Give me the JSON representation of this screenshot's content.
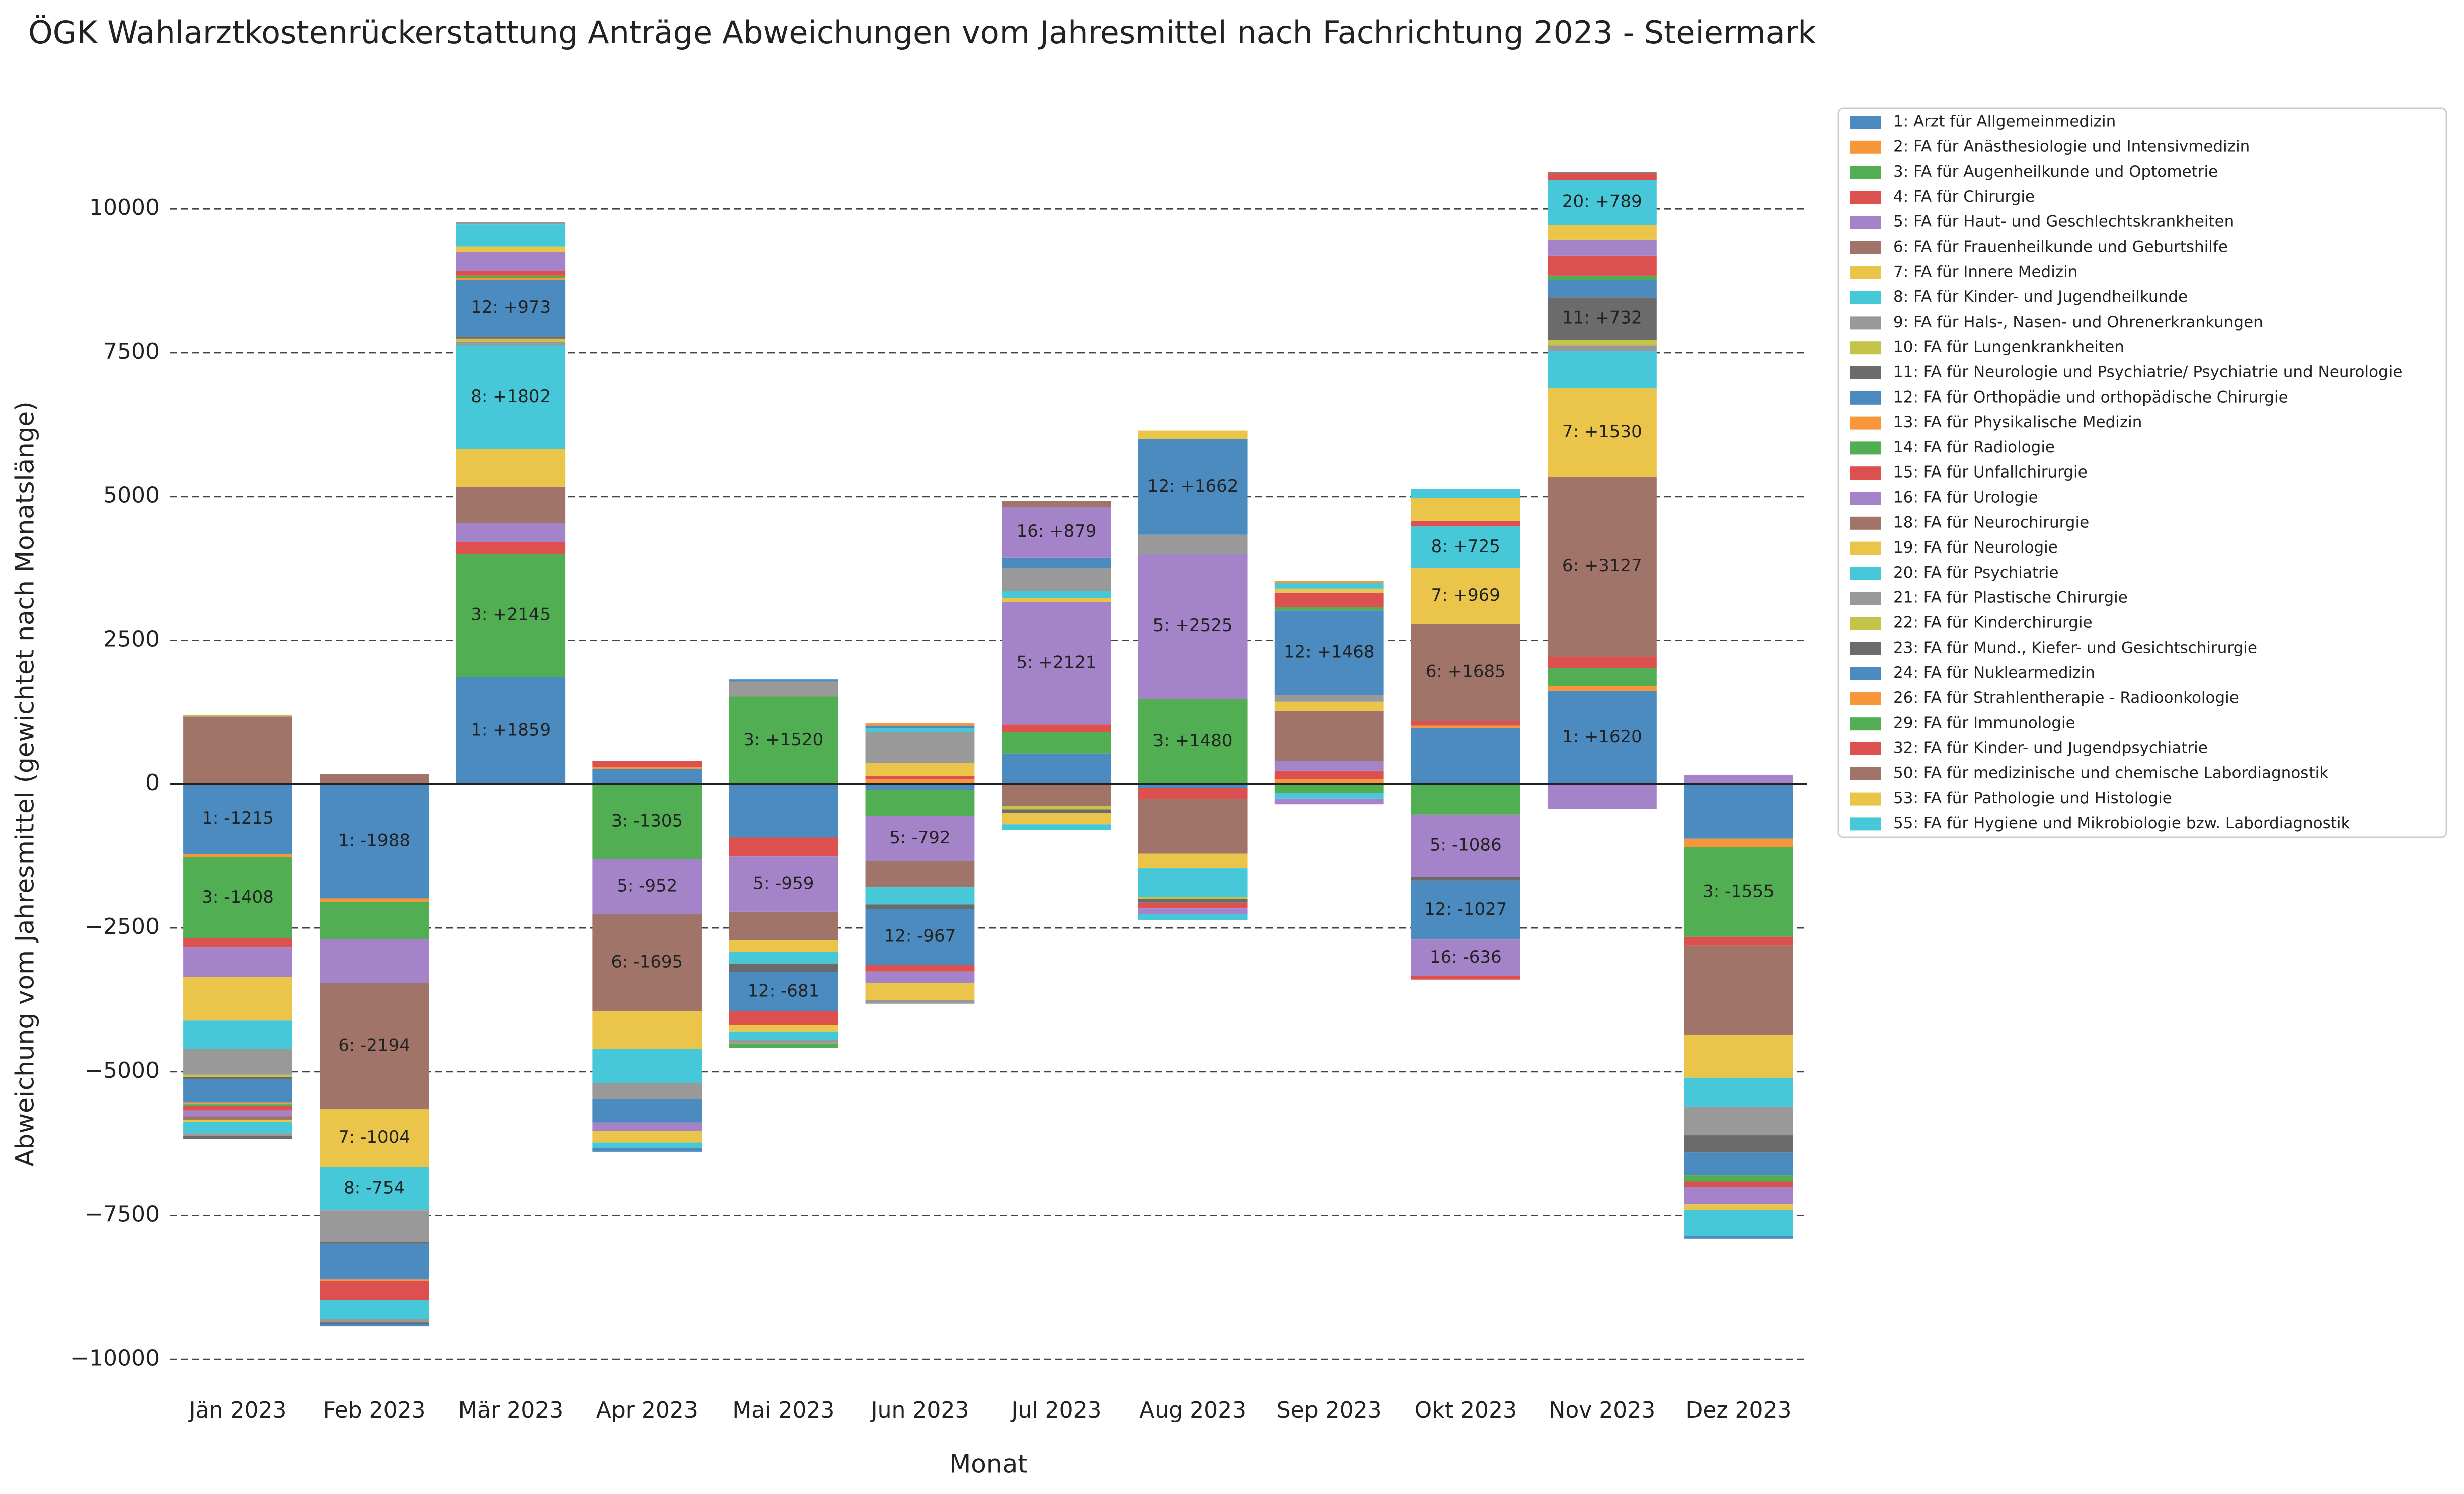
{
  "chart_data": {
    "type": "stacked_bar",
    "title": "ÖGK Wahlarztkostenrückerstattung Anträge Abweichungen vom Jahresmittel nach Fachrichtung 2023 - Steiermark",
    "x_label": "Monat",
    "y_label": "Abweichung vom Jahresmittel (gewichtet nach Monatslänge)",
    "categories": [
      "Jän 2023",
      "Feb 2023",
      "Mär 2023",
      "Apr 2023",
      "Mai 2023",
      "Jun 2023",
      "Jul 2023",
      "Aug 2023",
      "Sep 2023",
      "Okt 2023",
      "Nov 2023",
      "Dez 2023"
    ],
    "ylim": [
      -10400,
      11200
    ],
    "yticks": [
      {
        "value": -10000,
        "label": "−10000"
      },
      {
        "value": -7500,
        "label": "−7500"
      },
      {
        "value": -5000,
        "label": "−5000"
      },
      {
        "value": -2500,
        "label": "−2500"
      },
      0,
      2500,
      5000,
      7500,
      10000
    ],
    "grid": true,
    "series": [
      {
        "name": "1: Arzt für Allgemeinmedizin",
        "color": "#4b8bc0",
        "values": [
          -1215,
          -1988,
          1859,
          260,
          -930,
          -100,
          530,
          -60,
          0,
          980,
          1620,
          -950
        ],
        "value_labels": [
          "1: -1215",
          "1: -1988",
          "1: +1859",
          null,
          null,
          null,
          null,
          null,
          null,
          null,
          "1: +1620",
          null
        ]
      },
      {
        "name": "2: FA für Anästhesiologie und Intensivmedizin",
        "color": "#f7973a",
        "values": [
          -60,
          -60,
          0,
          30,
          0,
          80,
          0,
          0,
          80,
          40,
          80,
          -150
        ]
      },
      {
        "name": "3: FA für Augenheilkunde und Optometrie",
        "color": "#52ae52",
        "values": [
          -1408,
          -650,
          2145,
          -1305,
          1520,
          -450,
          380,
          1480,
          -150,
          -530,
          320,
          -1555
        ],
        "value_labels": [
          "3: -1408",
          null,
          "3: +2145",
          "3: -1305",
          "3: +1520",
          null,
          null,
          "3: +1480",
          null,
          null,
          null,
          "3: -1555"
        ]
      },
      {
        "name": "4: FA für Chirurgie",
        "color": "#dc5050",
        "values": [
          -150,
          0,
          200,
          110,
          -330,
          60,
          130,
          -200,
          150,
          80,
          200,
          -150
        ]
      },
      {
        "name": "5: FA für Haut- und Geschlechtskrankheiten",
        "color": "#a583c8",
        "values": [
          -520,
          -760,
          330,
          -952,
          -959,
          -792,
          2121,
          2525,
          170,
          -1086,
          -430,
          160
        ],
        "value_labels": [
          null,
          null,
          null,
          "5: -952",
          "5: -959",
          "5: -792",
          "5: +2121",
          "5: +2525",
          null,
          "5: -1086",
          null,
          null
        ]
      },
      {
        "name": "6: FA für Frauenheilkunde und Geburtshilfe",
        "color": "#a07468",
        "values": [
          1180,
          -2194,
          640,
          -1695,
          -500,
          -450,
          -380,
          -950,
          880,
          1685,
          3127,
          -1550
        ],
        "value_labels": [
          null,
          "6: -2194",
          null,
          "6: -1695",
          null,
          null,
          null,
          null,
          null,
          "6: +1685",
          "6: +3127",
          null
        ]
      },
      {
        "name": "7: FA für Innere Medizin",
        "color": "#ebc44a",
        "values": [
          -760,
          -1004,
          650,
          -650,
          -200,
          220,
          70,
          -250,
          150,
          969,
          1530,
          -750
        ],
        "value_labels": [
          null,
          "7: -1004",
          null,
          null,
          null,
          null,
          null,
          null,
          null,
          "7: +969",
          "7: +1530",
          null
        ]
      },
      {
        "name": "8: FA für Kinder- und Jugendheilkunde",
        "color": "#47c8d8",
        "values": [
          -490,
          -754,
          1802,
          -600,
          -200,
          -300,
          130,
          -500,
          -100,
          725,
          650,
          -500
        ],
        "value_labels": [
          null,
          "8: -754",
          "8: +1802",
          null,
          null,
          null,
          null,
          null,
          null,
          "8: +725",
          null,
          null
        ]
      },
      {
        "name": "9: FA für Hals-, Nasen- und Ohrenerkrankungen",
        "color": "#999999",
        "values": [
          -450,
          -550,
          60,
          -280,
          260,
          550,
          400,
          330,
          120,
          0,
          100,
          -500
        ]
      },
      {
        "name": "10: FA für Lungenkrankheiten",
        "color": "#c4c44a",
        "values": [
          -40,
          0,
          60,
          0,
          0,
          0,
          -60,
          -40,
          0,
          0,
          100,
          0
        ]
      },
      {
        "name": "11: FA für Neurologie und Psychiatrie/ Psychiatrie und Neurologie",
        "color": "#6b6b6b",
        "values": [
          -40,
          -30,
          40,
          0,
          -150,
          -80,
          -60,
          -60,
          0,
          -60,
          732,
          -300
        ],
        "value_labels": [
          null,
          null,
          null,
          null,
          null,
          null,
          null,
          null,
          null,
          null,
          "11: +732",
          null
        ]
      },
      {
        "name": "12: FA für Orthopädie und orthopädische Chirurgie",
        "color": "#4b8bc0",
        "values": [
          -400,
          -620,
          973,
          -400,
          -681,
          -967,
          180,
          1662,
          1468,
          -1027,
          300,
          -400
        ],
        "value_labels": [
          null,
          null,
          "12: +973",
          null,
          "12: -681",
          "12: -967",
          null,
          "12: +1662",
          "12: +1468",
          "12: -1027",
          null,
          null
        ]
      },
      {
        "name": "13: FA für Physikalische Medizin",
        "color": "#f7973a",
        "values": [
          -30,
          -30,
          40,
          0,
          0,
          0,
          0,
          0,
          0,
          0,
          0,
          0
        ]
      },
      {
        "name": "14: FA für Radiologie",
        "color": "#52ae52",
        "values": [
          -30,
          0,
          40,
          0,
          0,
          0,
          0,
          0,
          60,
          0,
          80,
          -100
        ]
      },
      {
        "name": "15: FA für Unfallchirurgie",
        "color": "#dc5050",
        "values": [
          -80,
          -330,
          80,
          0,
          -230,
          -120,
          0,
          -100,
          250,
          100,
          350,
          -100
        ]
      },
      {
        "name": "16: FA für Urologie",
        "color": "#a583c8",
        "values": [
          -100,
          0,
          330,
          -150,
          0,
          -200,
          879,
          -100,
          -100,
          -636,
          280,
          -300
        ],
        "value_labels": [
          null,
          null,
          null,
          null,
          null,
          null,
          "16: +879",
          null,
          null,
          "16: -636",
          null,
          null
        ]
      },
      {
        "name": "18: FA für Neurochirurgie",
        "color": "#a07468",
        "values": [
          -60,
          0,
          0,
          0,
          0,
          0,
          0,
          0,
          0,
          0,
          0,
          0
        ]
      },
      {
        "name": "19: FA für Neurologie",
        "color": "#ebc44a",
        "values": [
          -40,
          0,
          100,
          -200,
          -120,
          -300,
          -200,
          150,
          70,
          400,
          250,
          -100
        ]
      },
      {
        "name": "20: FA für Psychiatrie",
        "color": "#47c8d8",
        "values": [
          -200,
          -330,
          380,
          -100,
          -150,
          60,
          -100,
          -100,
          100,
          150,
          789,
          -450
        ],
        "value_labels": [
          null,
          null,
          null,
          null,
          null,
          null,
          null,
          null,
          null,
          null,
          "20: +789",
          null
        ]
      },
      {
        "name": "21: FA für Plastische Chirurgie",
        "color": "#999999",
        "values": [
          -40,
          -60,
          40,
          0,
          -60,
          -60,
          0,
          0,
          0,
          0,
          0,
          0
        ]
      },
      {
        "name": "22: FA für Kinderchirurgie",
        "color": "#c4c44a",
        "values": [
          30,
          0,
          0,
          0,
          0,
          0,
          0,
          0,
          0,
          0,
          0,
          0
        ]
      },
      {
        "name": "23: FA für Mund., Kiefer- und Gesichtschirurgie",
        "color": "#6b6b6b",
        "values": [
          -60,
          -30,
          0,
          0,
          0,
          0,
          0,
          0,
          0,
          0,
          0,
          0
        ]
      },
      {
        "name": "24: FA für Nuklearmedizin",
        "color": "#4b8bc0",
        "values": [
          0,
          -40,
          0,
          -60,
          40,
          50,
          0,
          0,
          0,
          0,
          0,
          -50
        ]
      },
      {
        "name": "26: FA für Strahlentherapie - Radioonkologie",
        "color": "#f7973a",
        "values": [
          0,
          0,
          0,
          0,
          0,
          40,
          0,
          0,
          30,
          0,
          0,
          0
        ]
      },
      {
        "name": "29: FA für Immunologie",
        "color": "#52ae52",
        "values": [
          0,
          0,
          0,
          0,
          -80,
          0,
          0,
          0,
          0,
          0,
          0,
          0
        ]
      },
      {
        "name": "32: FA für Kinder- und Jugendpsychiatrie",
        "color": "#dc5050",
        "values": [
          0,
          0,
          0,
          0,
          0,
          0,
          0,
          0,
          0,
          -60,
          100,
          0
        ]
      },
      {
        "name": "50: FA für medizinische und chemische Labordiagnostik",
        "color": "#a07468",
        "values": [
          0,
          170,
          0,
          0,
          0,
          0,
          100,
          0,
          0,
          0,
          40,
          0
        ]
      },
      {
        "name": "53: FA für Pathologie und Histologie",
        "color": "#ebc44a",
        "values": [
          0,
          0,
          0,
          0,
          0,
          0,
          0,
          0,
          0,
          0,
          0,
          0
        ]
      },
      {
        "name": "55: FA für Hygiene und Mikrobiologie bzw. Labordiagnostik",
        "color": "#47c8d8",
        "values": [
          0,
          0,
          0,
          0,
          0,
          0,
          0,
          0,
          0,
          0,
          0,
          0
        ]
      }
    ]
  }
}
